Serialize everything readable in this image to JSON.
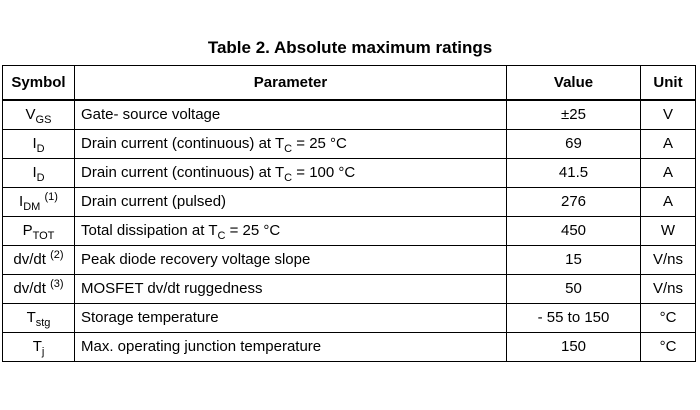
{
  "table": {
    "title": "Table 2. Absolute maximum ratings",
    "headers": {
      "symbol": "Symbol",
      "parameter": "Parameter",
      "value": "Value",
      "unit": "Unit"
    },
    "rows": [
      {
        "symbol": {
          "base": "V",
          "sub": "GS",
          "sup": ""
        },
        "param": {
          "pre": "Gate- source voltage",
          "sub_base": "",
          "sub": "",
          "post": ""
        },
        "value": "±25",
        "unit": "V"
      },
      {
        "symbol": {
          "base": "I",
          "sub": "D",
          "sup": ""
        },
        "param": {
          "pre": "Drain current (continuous) at ",
          "sub_base": "T",
          "sub": "C",
          "post": " = 25 °C"
        },
        "value": "69",
        "unit": "A"
      },
      {
        "symbol": {
          "base": "I",
          "sub": "D",
          "sup": ""
        },
        "param": {
          "pre": "Drain current (continuous) at ",
          "sub_base": "T",
          "sub": "C",
          "post": " = 100 °C"
        },
        "value": "41.5",
        "unit": "A"
      },
      {
        "symbol": {
          "base": "I",
          "sub": "DM",
          "sup": "(1)"
        },
        "param": {
          "pre": "Drain current (pulsed)",
          "sub_base": "",
          "sub": "",
          "post": ""
        },
        "value": "276",
        "unit": "A"
      },
      {
        "symbol": {
          "base": "P",
          "sub": "TOT",
          "sup": ""
        },
        "param": {
          "pre": "Total dissipation at ",
          "sub_base": "T",
          "sub": "C",
          "post": " = 25 °C"
        },
        "value": "450",
        "unit": "W"
      },
      {
        "symbol": {
          "base": "dv/dt",
          "sub": "",
          "sup": "(2)"
        },
        "param": {
          "pre": "Peak diode recovery voltage slope",
          "sub_base": "",
          "sub": "",
          "post": ""
        },
        "value": "15",
        "unit": "V/ns"
      },
      {
        "symbol": {
          "base": "dv/dt",
          "sub": "",
          "sup": "(3)"
        },
        "param": {
          "pre": "MOSFET dv/dt ruggedness",
          "sub_base": "",
          "sub": "",
          "post": ""
        },
        "value": "50",
        "unit": "V/ns"
      },
      {
        "symbol": {
          "base": "T",
          "sub": "stg",
          "sup": ""
        },
        "param": {
          "pre": "Storage temperature",
          "sub_base": "",
          "sub": "",
          "post": ""
        },
        "value": "- 55 to 150",
        "unit": "°C"
      },
      {
        "symbol": {
          "base": "T",
          "sub": "j",
          "sup": ""
        },
        "param": {
          "pre": "Max. operating junction temperature",
          "sub_base": "",
          "sub": "",
          "post": ""
        },
        "value": "150",
        "unit": "°C"
      }
    ]
  }
}
